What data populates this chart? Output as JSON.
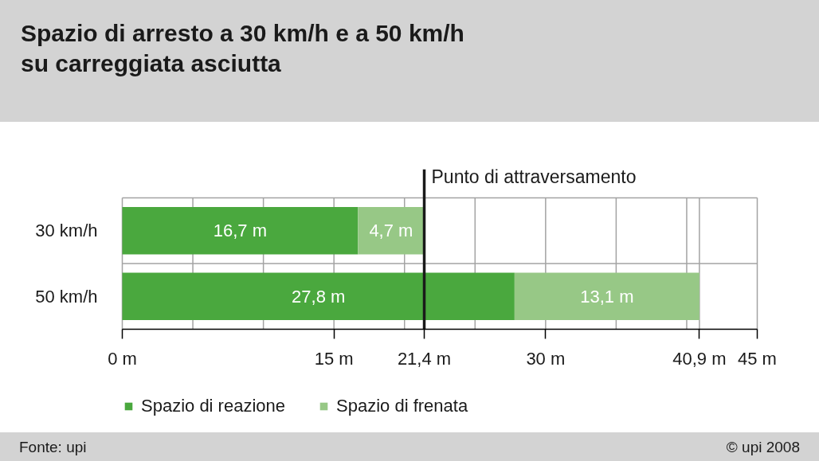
{
  "chart_data": {
    "type": "bar",
    "orientation": "horizontal",
    "stacked": true,
    "title": "Spazio di arresto a 30 km/h e a 50 km/h\nsu carreggiata asciutta",
    "categories": [
      "30 km/h",
      "50 km/h"
    ],
    "series": [
      {
        "name": "Spazio di reazione",
        "color": "#4aa83e",
        "values": [
          16.7,
          27.8
        ],
        "value_labels": [
          "16,7 m",
          "27,8 m"
        ]
      },
      {
        "name": "Spazio di frenata",
        "color": "#97c886",
        "values": [
          4.7,
          13.1
        ],
        "value_labels": [
          "4,7 m",
          "13,1 m"
        ]
      }
    ],
    "xlim": [
      0,
      45
    ],
    "xticks": [
      {
        "value": 0,
        "label": "0 m"
      },
      {
        "value": 5,
        "label": null
      },
      {
        "value": 10,
        "label": null
      },
      {
        "value": 15,
        "label": "15 m"
      },
      {
        "value": 20,
        "label": null
      },
      {
        "value": 21.4,
        "label": "21,4 m"
      },
      {
        "value": 25,
        "label": null
      },
      {
        "value": 30,
        "label": "30 m"
      },
      {
        "value": 35,
        "label": null
      },
      {
        "value": 40,
        "label": null
      },
      {
        "value": 40.9,
        "label": "40,9 m"
      },
      {
        "value": 45,
        "label": "45 m"
      }
    ],
    "ref_lines": [
      {
        "axis": "x",
        "value": 21.4,
        "label": "Punto di attraversamento",
        "color": "#1a1a1a"
      }
    ],
    "grid": true,
    "legend": "bottom",
    "annotations": [
      "Fonte: upi",
      "© upi 2008"
    ]
  }
}
